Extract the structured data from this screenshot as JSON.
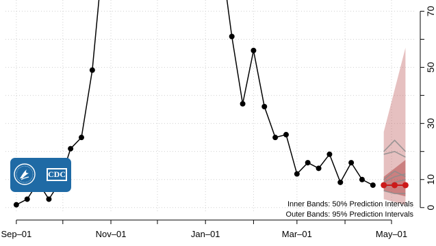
{
  "chart_data": {
    "type": "line",
    "title": "",
    "xlabel": "",
    "ylabel": "",
    "x_range": [
      "2022-08-25",
      "2023-05-16"
    ],
    "y_range": [
      -2,
      74
    ],
    "y_axis_position": "right",
    "x_ticks": [
      {
        "date": "2022-09-01",
        "label": "Sep–01"
      },
      {
        "date": "2022-11-01",
        "label": "Nov–01"
      },
      {
        "date": "2023-01-01",
        "label": "Jan–01"
      },
      {
        "date": "2023-03-01",
        "label": "Mar–01"
      },
      {
        "date": "2023-05-01",
        "label": "May–01"
      }
    ],
    "y_ticks": [
      0,
      10,
      30,
      50,
      70
    ],
    "grid": true,
    "observed": {
      "color": "#000000",
      "points": [
        {
          "x": "2022-09-01",
          "y": 1
        },
        {
          "x": "2022-09-08",
          "y": 3
        },
        {
          "x": "2022-09-15",
          "y": 9
        },
        {
          "x": "2022-09-22",
          "y": 3
        },
        {
          "x": "2022-09-29",
          "y": 9
        },
        {
          "x": "2022-10-06",
          "y": 21
        },
        {
          "x": "2022-10-13",
          "y": 25
        },
        {
          "x": "2022-10-20",
          "y": 49
        },
        {
          "x": "2022-10-27",
          "y": 90
        },
        {
          "x": "2023-01-11",
          "y": 90
        },
        {
          "x": "2023-01-18",
          "y": 61
        },
        {
          "x": "2023-01-25",
          "y": 37
        },
        {
          "x": "2023-02-01",
          "y": 56
        },
        {
          "x": "2023-02-08",
          "y": 36
        },
        {
          "x": "2023-02-15",
          "y": 25
        },
        {
          "x": "2023-02-22",
          "y": 26
        },
        {
          "x": "2023-03-01",
          "y": 12
        },
        {
          "x": "2023-03-08",
          "y": 16
        },
        {
          "x": "2023-03-15",
          "y": 14
        },
        {
          "x": "2023-03-22",
          "y": 19
        },
        {
          "x": "2023-03-29",
          "y": 9
        },
        {
          "x": "2023-04-05",
          "y": 16
        },
        {
          "x": "2023-04-12",
          "y": 10
        },
        {
          "x": "2023-04-19",
          "y": 8
        }
      ]
    },
    "forecast": {
      "color": "#cc1a1a",
      "x": [
        "2023-04-26",
        "2023-05-03",
        "2023-05-10"
      ],
      "median": [
        8,
        8,
        8
      ],
      "pi50": {
        "lower": [
          6,
          5,
          4
        ],
        "upper": [
          11,
          14,
          17
        ]
      },
      "pi95": {
        "lower": [
          3,
          2,
          1
        ],
        "upper": [
          27,
          42,
          57
        ]
      },
      "sample_lines": [
        [
          19,
          20,
          18
        ],
        [
          20,
          24,
          20
        ],
        [
          10,
          13,
          11
        ],
        [
          9,
          11,
          12
        ],
        [
          7,
          9,
          10
        ],
        [
          6,
          5,
          5
        ]
      ]
    },
    "annotations": [
      "Inner Bands: 50% Prediction Intervals",
      "Outer Bands: 95% Prediction Intervals"
    ],
    "logo_text": "CDC"
  }
}
